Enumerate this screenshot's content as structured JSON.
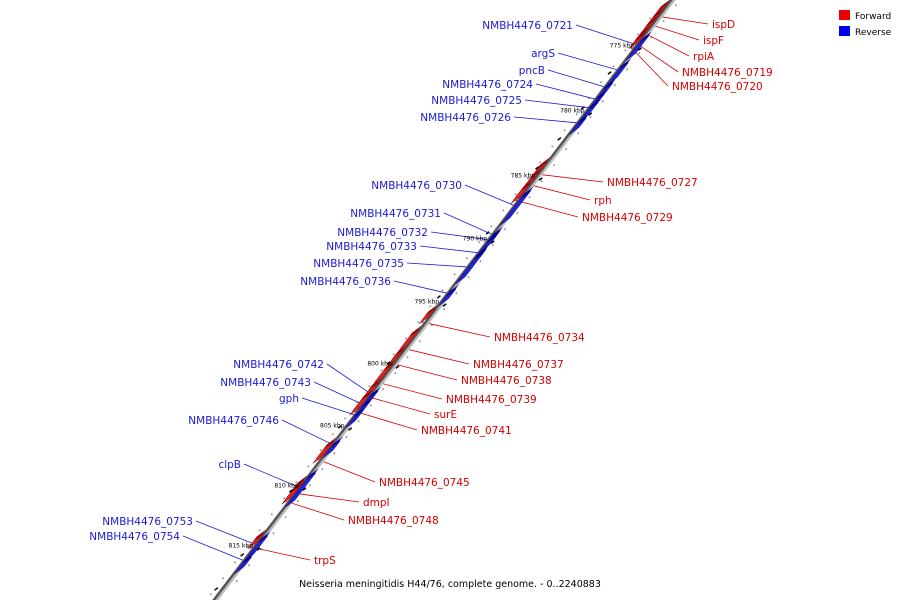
{
  "legend": {
    "forward_label": "Forward",
    "reverse_label": "Reverse",
    "forward_color": "#ee0000",
    "reverse_color": "#0000ee"
  },
  "caption": "Neisseria meningitidis H44/76, complete genome. - 0..2240883",
  "scale": {
    "ticks": [
      "775 kbp",
      "780 kbp",
      "785 kbp",
      "790 kbp",
      "795 kbp",
      "800 kbp",
      "805 kbp",
      "810 kbp",
      "815 kbp"
    ]
  },
  "forward_genes": [
    "ispD",
    "ispF",
    "rpiA",
    "NMBH4476_0719",
    "NMBH4476_0720",
    "NMBH4476_0727",
    "rph",
    "NMBH4476_0729",
    "NMBH4476_0734",
    "NMBH4476_0737",
    "NMBH4476_0738",
    "NMBH4476_0739",
    "surE",
    "NMBH4476_0741",
    "NMBH4476_0745",
    "dmpI",
    "NMBH4476_0748",
    "trpS"
  ],
  "reverse_genes": [
    "NMBH4476_0721",
    "argS",
    "pncB",
    "NMBH4476_0724",
    "NMBH4476_0725",
    "NMBH4476_0726",
    "NMBH4476_0730",
    "NMBH4476_0731",
    "NMBH4476_0732",
    "NMBH4476_0733",
    "NMBH4476_0735",
    "NMBH4476_0736",
    "NMBH4476_0742",
    "NMBH4476_0743",
    "gph",
    "NMBH4476_0746",
    "clpB",
    "NMBH4476_0753",
    "NMBH4476_0754"
  ]
}
